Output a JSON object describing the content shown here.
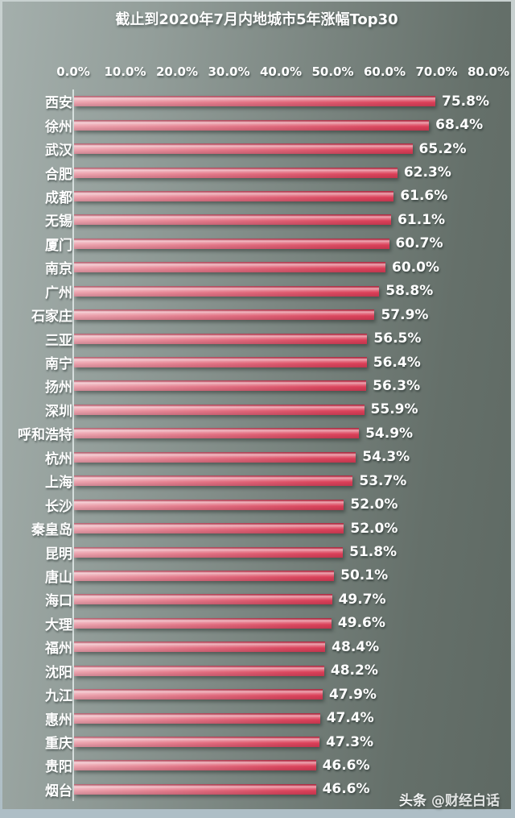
{
  "title": "截止到2020年7月内地城市5年涨幅Top30",
  "watermark": {
    "brand": "头条",
    "handle": "@财经白话"
  },
  "colors": {
    "background_left": "#A4AFAC",
    "background_right": "#5E6963",
    "frame": "#B9C6CA",
    "bar_gradient_left": "#ECA3AE",
    "bar_gradient_right": "#DB3E57",
    "text": "#FFFFFF"
  },
  "chart_data": {
    "type": "bar",
    "orientation": "horizontal",
    "title": "截止到2020年7月内地城市5年涨幅Top30",
    "categories": [
      "西安",
      "徐州",
      "武汉",
      "合肥",
      "成都",
      "无锡",
      "厦门",
      "南京",
      "广州",
      "石家庄",
      "三亚",
      "南宁",
      "扬州",
      "深圳",
      "呼和浩特",
      "杭州",
      "上海",
      "长沙",
      "秦皇岛",
      "昆明",
      "唐山",
      "海口",
      "大理",
      "福州",
      "沈阳",
      "九江",
      "惠州",
      "重庆",
      "贵阳",
      "烟台"
    ],
    "values": [
      75.8,
      68.4,
      65.2,
      62.3,
      61.6,
      61.1,
      60.7,
      60.0,
      58.8,
      57.9,
      56.5,
      56.4,
      56.3,
      55.9,
      54.9,
      54.3,
      53.7,
      52.0,
      52.0,
      51.8,
      50.1,
      49.7,
      49.6,
      48.4,
      48.2,
      47.9,
      47.4,
      47.3,
      46.6,
      46.6
    ],
    "value_labels": [
      "75.8%",
      "68.4%",
      "65.2%",
      "62.3%",
      "61.6%",
      "61.1%",
      "60.7%",
      "60.0%",
      "58.8%",
      "57.9%",
      "56.5%",
      "56.4%",
      "56.3%",
      "55.9%",
      "54.9%",
      "54.3%",
      "53.7%",
      "52.0%",
      "52.0%",
      "51.8%",
      "50.1%",
      "49.7%",
      "49.6%",
      "48.4%",
      "48.2%",
      "47.9%",
      "47.4%",
      "47.3%",
      "46.6%",
      "46.6%"
    ],
    "x_ticks": [
      "0.0%",
      "10.0%",
      "20.0%",
      "30.0%",
      "40.0%",
      "50.0%",
      "60.0%",
      "70.0%",
      "80.0%"
    ],
    "xlabel": "",
    "ylabel": "",
    "xlim": [
      0,
      80
    ],
    "grid": false,
    "legend": false
  }
}
